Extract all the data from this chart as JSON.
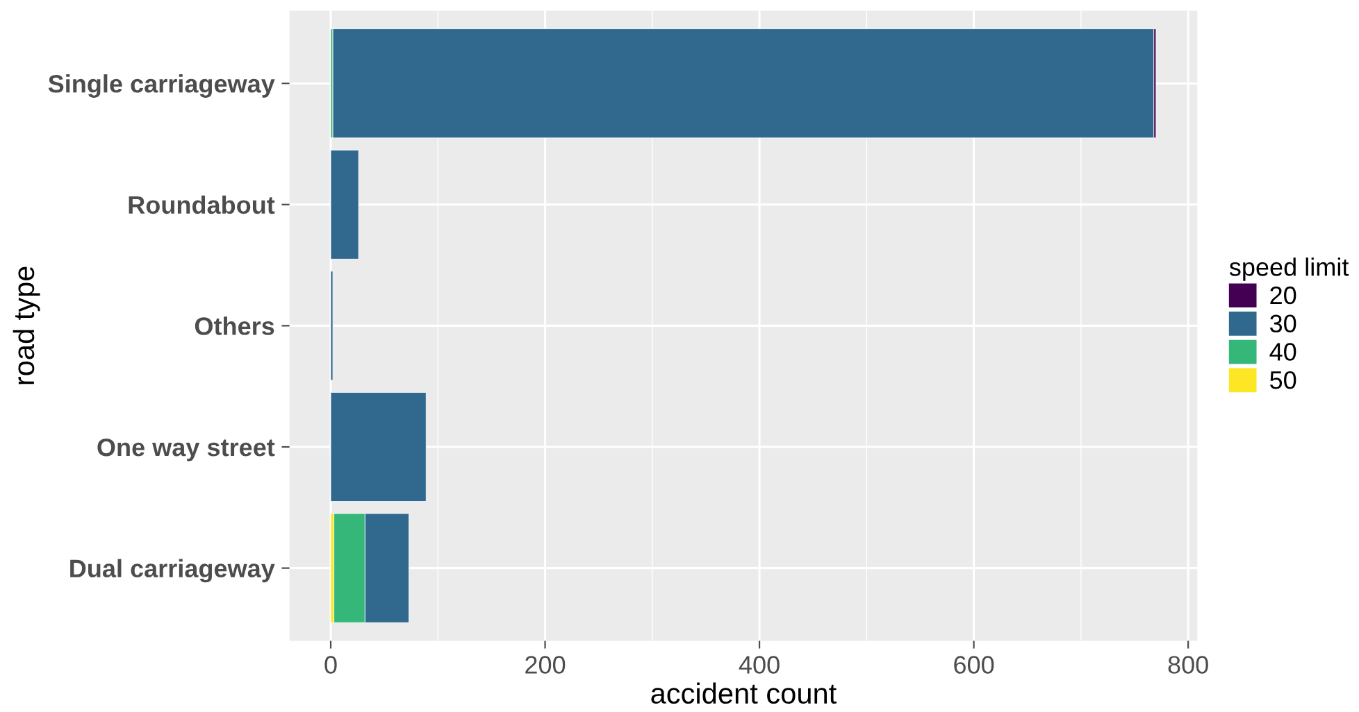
{
  "chart_data": {
    "type": "bar",
    "orientation": "horizontal",
    "stacked": true,
    "categories": [
      "Single carriageway",
      "Roundabout",
      "Others",
      "One way street",
      "Dual carriageway"
    ],
    "series": [
      {
        "name": "50",
        "color": "#fde725",
        "values": [
          null,
          null,
          null,
          null,
          3
        ]
      },
      {
        "name": "40",
        "color": "#35b779",
        "values": [
          2,
          null,
          null,
          null,
          29
        ]
      },
      {
        "name": "30",
        "color": "#31688e",
        "values": [
          766,
          26,
          2,
          89,
          41
        ]
      },
      {
        "name": "20",
        "color": "#440154",
        "values": [
          2,
          null,
          null,
          null,
          null
        ]
      }
    ],
    "xlabel": "accident count",
    "ylabel": "road type",
    "legend_title": "speed limit",
    "xlim": [
      -38.5,
      808.5
    ],
    "xticks": [
      0,
      200,
      400,
      600,
      800
    ],
    "grid": true,
    "legend": "right"
  }
}
